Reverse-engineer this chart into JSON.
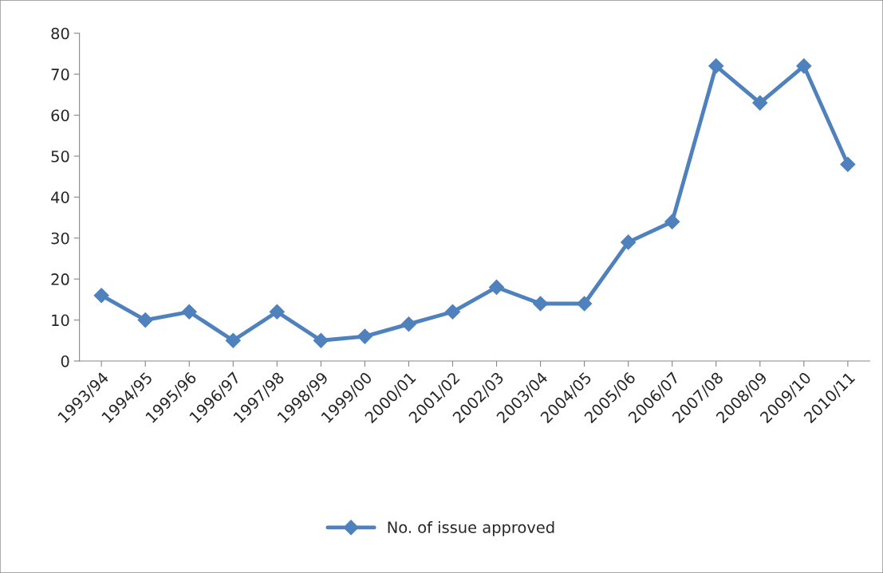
{
  "chart_data": {
    "type": "line",
    "categories": [
      "1993/94",
      "1994/95",
      "1995/96",
      "1996/97",
      "1997/98",
      "1998/99",
      "1999/00",
      "2000/01",
      "2001/02",
      "2002/03",
      "2003/04",
      "2004/05",
      "2005/06",
      "2006/07",
      "2007/08",
      "2008/09",
      "2009/10",
      "2010/11"
    ],
    "series": [
      {
        "name": "No. of issue approved",
        "color": "#4f81bd",
        "values": [
          16,
          10,
          12,
          5,
          12,
          5,
          6,
          9,
          12,
          18,
          14,
          14,
          29,
          34,
          72,
          63,
          72,
          48
        ]
      }
    ],
    "ylim": [
      0,
      80
    ],
    "yticks": [
      0,
      10,
      20,
      30,
      40,
      50,
      60,
      70,
      80
    ],
    "grid": false,
    "legend": "bottom",
    "marker": "diamond",
    "line_style": "solid"
  }
}
